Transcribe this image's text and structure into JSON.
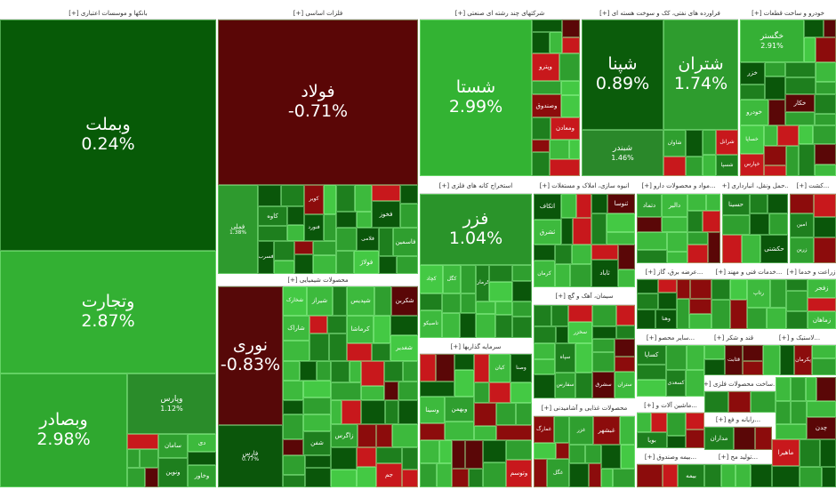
{
  "sectors": [
    {
      "header": "بانکها و موسسات اعتباری [+]",
      "tiles": [
        {
          "symbol": "وبملت",
          "change": "0.24%",
          "color": "#075a07"
        },
        {
          "symbol": "وتجارت",
          "change": "2.87%",
          "color": "#33b033"
        },
        {
          "symbol": "وبصادر",
          "change": "2.98%",
          "color": "#2fa82f"
        },
        {
          "symbol": "وپارس",
          "change": "1.12%",
          "color": "#2a8c2a"
        }
      ],
      "minor": [
        "ونوین",
        "سامان",
        "وخاور",
        "دی"
      ]
    },
    {
      "header": "فلزات اساسی [+]",
      "tiles": [
        {
          "symbol": "فولاد",
          "change": "-0.71%",
          "color": "#5a0606"
        },
        {
          "symbol": "فملی",
          "change": "1.38%",
          "color": "#2e9a2e"
        }
      ],
      "minor": [
        "فخوز",
        "فاسمین",
        "فولاژ",
        "کاوه",
        "کویر",
        "فسرب",
        "فنورد",
        "فلامی"
      ]
    },
    {
      "header": "محصولات شیمیایی [+]",
      "tiles": [
        {
          "symbol": "نوری",
          "change": "-0.83%",
          "color": "#560808"
        },
        {
          "symbol": "فارس",
          "change": "0.77%",
          "color": "#0b560b"
        }
      ],
      "minor": [
        "شپدیس",
        "شکربن",
        "شیراز",
        "کرماشا",
        "شغدیر",
        "شخارک",
        "شاراک",
        "شفن",
        "جم",
        "زاگرس"
      ]
    },
    {
      "header": "شرکتهای چند رشته ای صنعتی [+]",
      "tiles": [
        {
          "symbol": "شستا",
          "change": "2.99%",
          "color": "#33b333"
        }
      ],
      "minor": [
        "وپترو",
        "وصندوق",
        "ومعادن"
      ]
    },
    {
      "header": "استخراج کانه های فلزی [+]",
      "tiles": [
        {
          "symbol": "فزر",
          "change": "1.04%",
          "color": "#2a942a"
        }
      ],
      "minor": [
        "کچاد",
        "تاصیکو",
        "کگل",
        "کرمان"
      ]
    },
    {
      "header": "سرمایه گذاریها [+]",
      "tiles": [],
      "minor": [
        "وبهمن",
        "وتوسم",
        "وسینا",
        "کیان",
        "وصنا"
      ]
    },
    {
      "header": "فراورده های نفتی، کک و سوخت هسته ای [+]",
      "tiles": [
        {
          "symbol": "شپنا",
          "change": "0.89%",
          "color": "#0b5c0b"
        },
        {
          "symbol": "شتران",
          "change": "1.74%",
          "color": "#2e9c2e"
        },
        {
          "symbol": "شبندر",
          "change": "1.46%",
          "color": "#2a882a"
        }
      ],
      "minor": [
        "شاوان",
        "شرانل",
        "شسپا"
      ]
    },
    {
      "header": "خودرو و ساخت قطعات [+]",
      "tiles": [
        {
          "symbol": "خگستر",
          "change": "2.91%",
          "color": "#35b035"
        }
      ],
      "minor": [
        "خودرو",
        "خساپا",
        "خزر",
        "خپارس",
        "خکار"
      ]
    },
    {
      "header": "انبوه سازی، املاک و مستغلات [+]",
      "tiles": [],
      "minor": [
        "ثاباد",
        "اتکاف",
        "ثشرق",
        "کرمان",
        "ثنوسا"
      ]
    },
    {
      "header": "...مواد و محصولات دارو [+]",
      "tiles": [],
      "minor": [
        "دالبر",
        "دتماد"
      ]
    },
    {
      "header": "...حمل ونقل، انبارداری [+]",
      "tiles": [],
      "minor": [
        "حکشتی",
        "حسینا"
      ]
    },
    {
      "header": "...کشت [+]",
      "tiles": [],
      "minor": [
        "زرین",
        "امین"
      ]
    },
    {
      "header": "...عرضه برق، گاز [+]",
      "tiles": [],
      "minor": [
        "وهنا"
      ]
    },
    {
      "header": "...خدمات فنی و مهند [+]",
      "tiles": [],
      "minor": [
        "رتاپ"
      ]
    },
    {
      "header": "زراعت و خدما [+]",
      "tiles": [],
      "minor": [
        "زفجر",
        "زماهان"
      ]
    },
    {
      "header": "سیمان، آهک و گچ [+]",
      "tiles": [],
      "minor": [
        "سپاه",
        "سشرق",
        "ستران",
        "سفارس",
        "سخزر"
      ]
    },
    {
      "header": "...سایر محصو [+]",
      "tiles": [],
      "minor": [
        "کساپا",
        "کسعدی"
      ]
    },
    {
      "header": "قند و شکر [+]",
      "tiles": [],
      "minor": [
        "قثابت"
      ]
    },
    {
      "header": "...لاستیک و [+]",
      "tiles": [],
      "minor": [
        "پکرمان"
      ]
    },
    {
      "header": "محصولات غذایی و آشامیدنی [+]",
      "tiles": [],
      "minor": [
        "غبشهر",
        "غزر",
        "غگل",
        "غمارگ"
      ]
    },
    {
      "header": "...ماشین آلات و [+]",
      "tiles": [],
      "minor": [
        "بویا"
      ]
    },
    {
      "header": "...ساخت محصولات فلزی [+]",
      "tiles": [],
      "minor": [
        "چدن"
      ]
    },
    {
      "header": "...رایانه و فع [+]",
      "tiles": [],
      "minor": [
        "مداران"
      ]
    },
    {
      "header": "...بیمه وصندوق [+]",
      "tiles": [],
      "minor": [
        "بیمه"
      ]
    },
    {
      "header": "...تولید مح [+]",
      "tiles": [],
      "minor": [
        "ماهیرا"
      ]
    }
  ],
  "palette": [
    "#5a0707",
    "#8c0c0c",
    "#c8181c",
    "#0a560a",
    "#1e7f1e",
    "#2f9f2f",
    "#3dba3d",
    "#44c944"
  ]
}
